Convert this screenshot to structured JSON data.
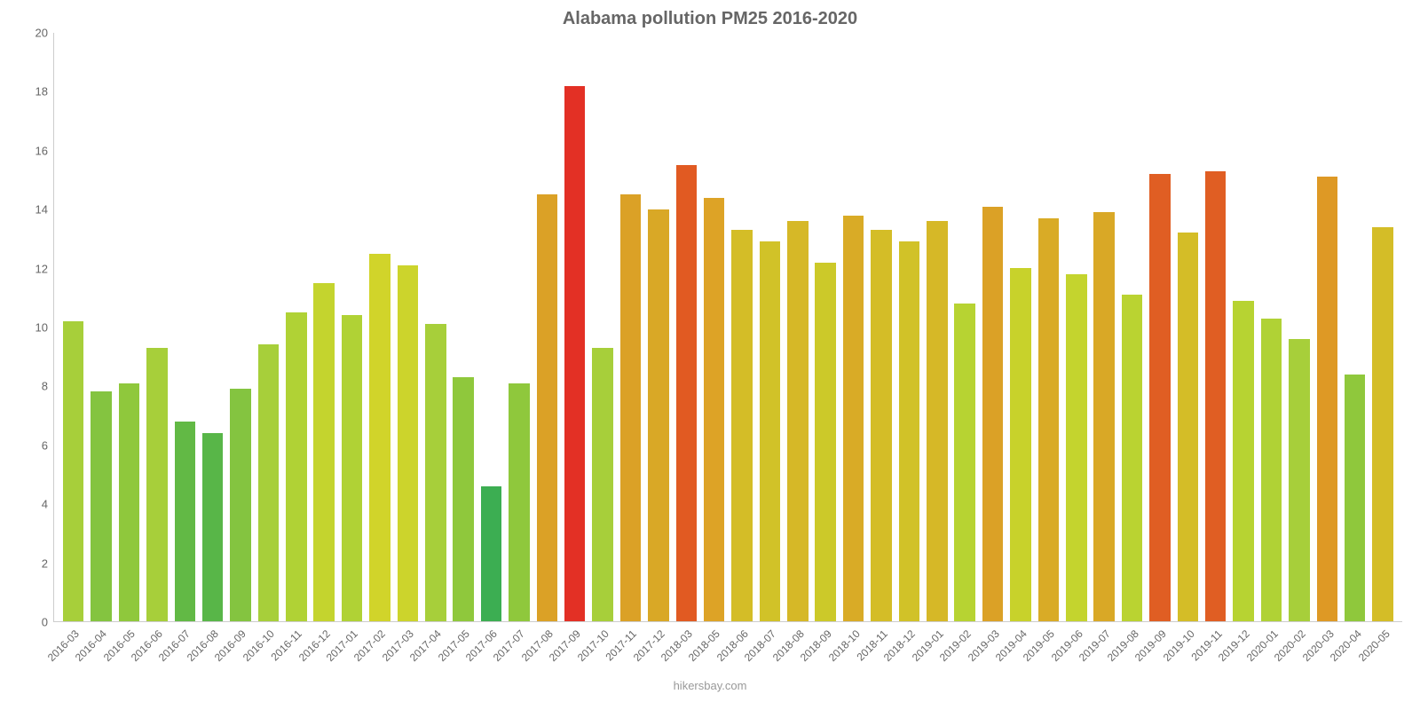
{
  "chart": {
    "type": "bar",
    "title": "Alabama pollution PM25 2016-2020",
    "title_fontsize": 20,
    "title_color": "#666666",
    "credit": "hikersbay.com",
    "credit_color": "#999999",
    "credit_fontsize": 13,
    "background_color": "#ffffff",
    "axis_color": "#cccccc",
    "y_label_color": "#666666",
    "x_label_color": "#666666",
    "x_label_fontsize": 12,
    "y_label_fontsize": 13,
    "ylim": [
      0,
      20
    ],
    "ytick_step": 2,
    "yticks": [
      0,
      2,
      4,
      6,
      8,
      10,
      12,
      14,
      16,
      18,
      20
    ],
    "bar_width_pct": 80,
    "x_label_rotation_deg": -45,
    "categories": [
      "2016-03",
      "2016-04",
      "2016-05",
      "2016-06",
      "2016-07",
      "2016-08",
      "2016-09",
      "2016-10",
      "2016-11",
      "2016-12",
      "2017-01",
      "2017-02",
      "2017-03",
      "2017-04",
      "2017-05",
      "2017-06",
      "2017-07",
      "2017-08",
      "2017-09",
      "2017-10",
      "2017-11",
      "2017-12",
      "2018-03",
      "2018-05",
      "2018-06",
      "2018-07",
      "2018-08",
      "2018-09",
      "2018-10",
      "2018-11",
      "2018-12",
      "2019-01",
      "2019-02",
      "2019-03",
      "2019-04",
      "2019-05",
      "2019-06",
      "2019-07",
      "2019-08",
      "2019-09",
      "2019-10",
      "2019-11",
      "2019-12",
      "2020-01",
      "2020-02",
      "2020-03",
      "2020-04",
      "2020-05"
    ],
    "values": [
      10.2,
      7.8,
      8.1,
      9.3,
      6.8,
      6.4,
      7.9,
      9.4,
      10.5,
      11.5,
      10.4,
      12.5,
      12.1,
      10.1,
      8.3,
      4.6,
      8.1,
      14.5,
      18.2,
      9.3,
      14.5,
      14.0,
      15.5,
      14.4,
      13.3,
      12.9,
      13.6,
      12.2,
      13.8,
      13.3,
      12.9,
      13.6,
      10.8,
      14.1,
      12.0,
      13.7,
      11.8,
      13.9,
      11.1,
      15.2,
      13.2,
      15.3,
      10.9,
      10.3,
      9.6,
      15.1,
      8.4,
      13.4
    ],
    "bar_colors": [
      "#a7cf3a",
      "#84c440",
      "#8fc83c",
      "#a7cf3a",
      "#62b945",
      "#58b648",
      "#84c440",
      "#a7cf3a",
      "#b0d235",
      "#c4d42e",
      "#b0d235",
      "#d1d42a",
      "#ccd42c",
      "#a7cf3a",
      "#8fc83c",
      "#3cae52",
      "#8fc83c",
      "#dba126",
      "#e33025",
      "#a7cf3a",
      "#dba126",
      "#d9a826",
      "#e15a22",
      "#dda326",
      "#d4bd27",
      "#d1c228",
      "#d6b827",
      "#ccc929",
      "#d9ab26",
      "#d4bd27",
      "#d1c228",
      "#d6b827",
      "#b7d332",
      "#dba126",
      "#c8d22b",
      "#d9ab26",
      "#c4d42e",
      "#d9a826",
      "#bad331",
      "#e05e23",
      "#d4bd27",
      "#e05e23",
      "#b7d332",
      "#b0d235",
      "#a7cf3a",
      "#de9925",
      "#8fc83c",
      "#d4bd27"
    ]
  }
}
